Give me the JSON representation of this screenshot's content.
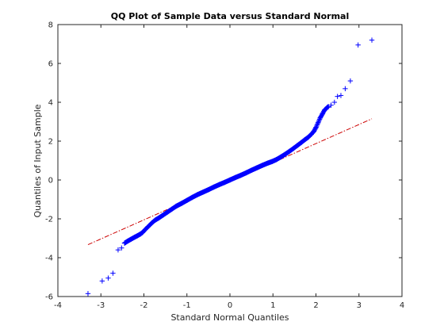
{
  "chart_data": {
    "type": "scatter",
    "title": "QQ Plot of Sample Data versus Standard Normal",
    "xlabel": "Standard Normal Quantiles",
    "ylabel": "Quantiles of Input Sample",
    "xlim": [
      -4,
      4
    ],
    "ylim": [
      -6,
      8
    ],
    "xticks": [
      -4,
      -3,
      -2,
      -1,
      0,
      1,
      2,
      3,
      4
    ],
    "yticks": [
      -6,
      -4,
      -2,
      0,
      2,
      4,
      6,
      8
    ],
    "xtick_labels": [
      "-4",
      "-3",
      "-2",
      "-1",
      "0",
      "1",
      "2",
      "3",
      "4"
    ],
    "ytick_labels": [
      "-6",
      "-4",
      "-2",
      "0",
      "2",
      "4",
      "6",
      "8"
    ],
    "grid": false,
    "marker": "+",
    "colors": {
      "points": "#0000ff",
      "reference_line": "#cc0000",
      "axes": "#262626"
    },
    "reference_line": {
      "style": "dash-dot",
      "x": [
        -3.3,
        3.3
      ],
      "y": [
        -3.33,
        3.15
      ]
    },
    "points": {
      "x": [
        -3.3,
        -2.97,
        -2.83,
        -2.72,
        -2.6,
        -2.52,
        -2.45,
        -2.38,
        -2.3,
        -2.22,
        -2.15,
        -2.08,
        -2.03,
        -1.97,
        -1.9,
        -1.82,
        -1.74,
        -1.65,
        -1.55,
        -1.45,
        -1.35,
        -1.25,
        -1.12,
        -1.0,
        -0.88,
        -0.75,
        -0.62,
        -0.5,
        -0.38,
        -0.25,
        -0.12,
        0.0,
        0.12,
        0.25,
        0.38,
        0.5,
        0.62,
        0.75,
        0.88,
        0.98,
        1.08,
        1.18,
        1.28,
        1.38,
        1.48,
        1.57,
        1.66,
        1.74,
        1.82,
        1.89,
        1.95,
        2.0,
        2.05,
        2.1,
        2.15,
        2.2,
        2.27,
        2.35,
        2.43,
        2.5,
        2.58,
        2.68,
        2.8,
        2.98,
        3.3
      ],
      "y": [
        -5.85,
        -5.2,
        -5.05,
        -4.8,
        -3.6,
        -3.5,
        -3.25,
        -3.15,
        -3.05,
        -2.95,
        -2.87,
        -2.78,
        -2.7,
        -2.55,
        -2.4,
        -2.22,
        -2.07,
        -1.95,
        -1.8,
        -1.65,
        -1.5,
        -1.35,
        -1.2,
        -1.05,
        -0.9,
        -0.75,
        -0.62,
        -0.5,
        -0.37,
        -0.24,
        -0.12,
        0.0,
        0.12,
        0.24,
        0.37,
        0.5,
        0.62,
        0.75,
        0.87,
        0.95,
        1.05,
        1.18,
        1.32,
        1.47,
        1.63,
        1.78,
        1.93,
        2.07,
        2.2,
        2.35,
        2.5,
        2.7,
        2.95,
        3.2,
        3.4,
        3.6,
        3.75,
        3.85,
        4.0,
        4.3,
        4.35,
        4.7,
        5.1,
        6.95,
        7.2
      ]
    }
  }
}
